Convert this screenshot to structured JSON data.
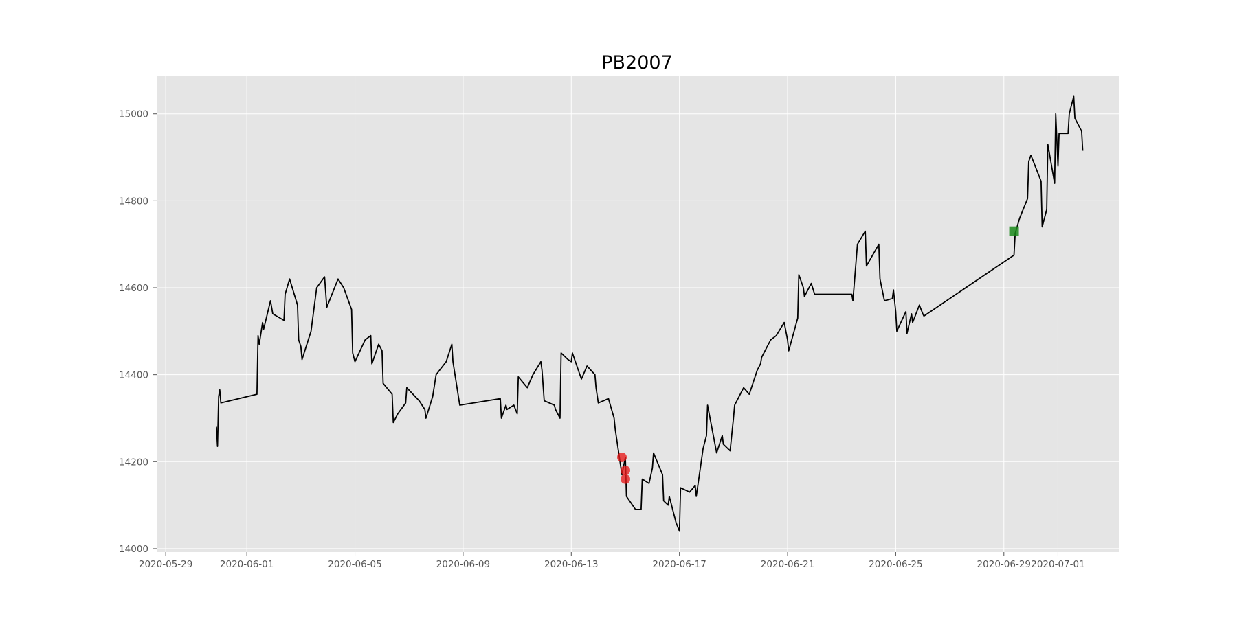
{
  "chart_data": {
    "type": "line",
    "title": "PB2007",
    "xlabel": "",
    "ylabel": "",
    "x_ticks": [
      "2020-05-29",
      "2020-06-01",
      "2020-06-05",
      "2020-06-09",
      "2020-06-13",
      "2020-06-17",
      "2020-06-21",
      "2020-06-25",
      "2020-06-29",
      "2020-07-01"
    ],
    "y_ticks": [
      14000,
      14200,
      14400,
      14600,
      14800,
      15000
    ],
    "xlim": [
      "2020-05-28 16:00",
      "2020-07-03 06:00"
    ],
    "ylim": [
      13992,
      15088
    ],
    "grid": true,
    "colors": {
      "background": "#e5e5e5",
      "grid": "#ffffff",
      "line": "#000000",
      "buy_marker": "#e8191a",
      "sell_marker": "#1a8a1a"
    },
    "series": [
      {
        "type": "line",
        "points": [
          [
            "2020-05-30 21:00",
            14280
          ],
          [
            "2020-05-30 22:00",
            14235
          ],
          [
            "2020-05-30 23:00",
            14350
          ],
          [
            "2020-05-31 00:00",
            14365
          ],
          [
            "2020-05-31 01:00",
            14335
          ],
          [
            "2020-06-01 09:00",
            14355
          ],
          [
            "2020-06-01 10:00",
            14490
          ],
          [
            "2020-06-01 11:00",
            14470
          ],
          [
            "2020-06-01 14:00",
            14520
          ],
          [
            "2020-06-01 15:00",
            14505
          ],
          [
            "2020-06-01 21:00",
            14570
          ],
          [
            "2020-06-01 23:00",
            14540
          ],
          [
            "2020-06-02 09:00",
            14525
          ],
          [
            "2020-06-02 10:00",
            14585
          ],
          [
            "2020-06-02 14:00",
            14620
          ],
          [
            "2020-06-02 21:00",
            14560
          ],
          [
            "2020-06-02 22:00",
            14480
          ],
          [
            "2020-06-03 00:00",
            14465
          ],
          [
            "2020-06-03 01:00",
            14435
          ],
          [
            "2020-06-03 09:00",
            14500
          ],
          [
            "2020-06-03 14:00",
            14600
          ],
          [
            "2020-06-03 21:00",
            14625
          ],
          [
            "2020-06-03 23:00",
            14555
          ],
          [
            "2020-06-04 09:00",
            14620
          ],
          [
            "2020-06-04 14:00",
            14600
          ],
          [
            "2020-06-04 21:00",
            14550
          ],
          [
            "2020-06-04 22:00",
            14450
          ],
          [
            "2020-06-05 00:00",
            14430
          ],
          [
            "2020-06-05 09:00",
            14480
          ],
          [
            "2020-06-05 14:00",
            14490
          ],
          [
            "2020-06-05 15:00",
            14425
          ],
          [
            "2020-06-05 21:00",
            14470
          ],
          [
            "2020-06-06 00:00",
            14455
          ],
          [
            "2020-06-06 01:00",
            14380
          ],
          [
            "2020-06-06 09:00",
            14355
          ],
          [
            "2020-06-06 10:00",
            14290
          ],
          [
            "2020-06-06 14:00",
            14310
          ],
          [
            "2020-06-06 21:00",
            14335
          ],
          [
            "2020-06-06 22:00",
            14370
          ],
          [
            "2020-06-07 09:00",
            14340
          ],
          [
            "2020-06-07 14:00",
            14320
          ],
          [
            "2020-06-07 15:00",
            14300
          ],
          [
            "2020-06-07 21:00",
            14350
          ],
          [
            "2020-06-08 00:00",
            14400
          ],
          [
            "2020-06-08 09:00",
            14430
          ],
          [
            "2020-06-08 14:00",
            14470
          ],
          [
            "2020-06-08 15:00",
            14430
          ],
          [
            "2020-06-08 21:00",
            14330
          ],
          [
            "2020-06-10 09:00",
            14345
          ],
          [
            "2020-06-10 10:00",
            14300
          ],
          [
            "2020-06-10 14:00",
            14330
          ],
          [
            "2020-06-10 15:00",
            14320
          ],
          [
            "2020-06-10 21:00",
            14330
          ],
          [
            "2020-06-11 00:00",
            14310
          ],
          [
            "2020-06-11 01:00",
            14395
          ],
          [
            "2020-06-11 09:00",
            14370
          ],
          [
            "2020-06-11 14:00",
            14400
          ],
          [
            "2020-06-11 21:00",
            14430
          ],
          [
            "2020-06-11 22:00",
            14410
          ],
          [
            "2020-06-12 00:00",
            14340
          ],
          [
            "2020-06-12 09:00",
            14330
          ],
          [
            "2020-06-12 10:00",
            14320
          ],
          [
            "2020-06-12 14:00",
            14300
          ],
          [
            "2020-06-12 15:00",
            14450
          ],
          [
            "2020-06-12 21:00",
            14435
          ],
          [
            "2020-06-13 00:00",
            14430
          ],
          [
            "2020-06-13 01:00",
            14450
          ],
          [
            "2020-06-13 09:00",
            14390
          ],
          [
            "2020-06-13 14:00",
            14420
          ],
          [
            "2020-06-13 21:00",
            14400
          ],
          [
            "2020-06-13 22:00",
            14370
          ],
          [
            "2020-06-14 00:00",
            14335
          ],
          [
            "2020-06-14 09:00",
            14345
          ],
          [
            "2020-06-14 14:00",
            14300
          ],
          [
            "2020-06-14 15:00",
            14275
          ],
          [
            "2020-06-14 21:00",
            14170
          ],
          [
            "2020-06-15 00:00",
            14210
          ],
          [
            "2020-06-15 01:00",
            14120
          ],
          [
            "2020-06-15 09:00",
            14090
          ],
          [
            "2020-06-15 14:00",
            14090
          ],
          [
            "2020-06-15 15:00",
            14160
          ],
          [
            "2020-06-15 21:00",
            14150
          ],
          [
            "2020-06-16 00:00",
            14185
          ],
          [
            "2020-06-16 01:00",
            14220
          ],
          [
            "2020-06-16 09:00",
            14170
          ],
          [
            "2020-06-16 10:00",
            14110
          ],
          [
            "2020-06-16 14:00",
            14100
          ],
          [
            "2020-06-16 15:00",
            14120
          ],
          [
            "2020-06-16 21:00",
            14060
          ],
          [
            "2020-06-17 00:00",
            14040
          ],
          [
            "2020-06-17 01:00",
            14140
          ],
          [
            "2020-06-17 09:00",
            14130
          ],
          [
            "2020-06-17 14:00",
            14145
          ],
          [
            "2020-06-17 15:00",
            14120
          ],
          [
            "2020-06-17 21:00",
            14230
          ],
          [
            "2020-06-18 00:00",
            14260
          ],
          [
            "2020-06-18 01:00",
            14330
          ],
          [
            "2020-06-18 09:00",
            14220
          ],
          [
            "2020-06-18 14:00",
            14260
          ],
          [
            "2020-06-18 15:00",
            14240
          ],
          [
            "2020-06-18 21:00",
            14225
          ],
          [
            "2020-06-19 00:00",
            14300
          ],
          [
            "2020-06-19 01:00",
            14330
          ],
          [
            "2020-06-19 09:00",
            14370
          ],
          [
            "2020-06-19 14:00",
            14355
          ],
          [
            "2020-06-19 21:00",
            14410
          ],
          [
            "2020-06-20 00:00",
            14425
          ],
          [
            "2020-06-20 01:00",
            14440
          ],
          [
            "2020-06-20 09:00",
            14480
          ],
          [
            "2020-06-20 14:00",
            14490
          ],
          [
            "2020-06-20 21:00",
            14520
          ],
          [
            "2020-06-21 00:00",
            14480
          ],
          [
            "2020-06-21 01:00",
            14455
          ],
          [
            "2020-06-21 09:00",
            14530
          ],
          [
            "2020-06-21 10:00",
            14630
          ],
          [
            "2020-06-21 14:00",
            14600
          ],
          [
            "2020-06-21 15:00",
            14580
          ],
          [
            "2020-06-21 21:00",
            14610
          ],
          [
            "2020-06-22 00:00",
            14585
          ],
          [
            "2020-06-23 09:00",
            14585
          ],
          [
            "2020-06-23 10:00",
            14570
          ],
          [
            "2020-06-23 14:00",
            14700
          ],
          [
            "2020-06-23 21:00",
            14730
          ],
          [
            "2020-06-23 22:00",
            14650
          ],
          [
            "2020-06-24 09:00",
            14700
          ],
          [
            "2020-06-24 10:00",
            14620
          ],
          [
            "2020-06-24 14:00",
            14570
          ],
          [
            "2020-06-24 21:00",
            14575
          ],
          [
            "2020-06-24 22:00",
            14595
          ],
          [
            "2020-06-25 00:00",
            14545
          ],
          [
            "2020-06-25 01:00",
            14500
          ],
          [
            "2020-06-25 09:00",
            14545
          ],
          [
            "2020-06-25 10:00",
            14495
          ],
          [
            "2020-06-25 14:00",
            14540
          ],
          [
            "2020-06-25 15:00",
            14520
          ],
          [
            "2020-06-25 21:00",
            14560
          ],
          [
            "2020-06-26 00:00",
            14540
          ],
          [
            "2020-06-26 01:00",
            14535
          ],
          [
            "2020-06-29 09:00",
            14675
          ],
          [
            "2020-06-29 10:00",
            14725
          ],
          [
            "2020-06-29 14:00",
            14760
          ],
          [
            "2020-06-29 21:00",
            14805
          ],
          [
            "2020-06-29 22:00",
            14890
          ],
          [
            "2020-06-30 00:00",
            14905
          ],
          [
            "2020-06-30 09:00",
            14845
          ],
          [
            "2020-06-30 10:00",
            14740
          ],
          [
            "2020-06-30 14:00",
            14780
          ],
          [
            "2020-06-30 15:00",
            14930
          ],
          [
            "2020-06-30 21:00",
            14840
          ],
          [
            "2020-06-30 22:00",
            15000
          ],
          [
            "2020-07-01 00:00",
            14880
          ],
          [
            "2020-07-01 01:00",
            14955
          ],
          [
            "2020-07-01 09:00",
            14955
          ],
          [
            "2020-07-01 10:00",
            15000
          ],
          [
            "2020-07-01 14:00",
            15040
          ],
          [
            "2020-07-01 15:00",
            14990
          ],
          [
            "2020-07-01 21:00",
            14960
          ],
          [
            "2020-07-01 22:00",
            14915
          ]
        ]
      }
    ],
    "markers": [
      {
        "type": "buy",
        "shape": "circle",
        "x": "2020-06-14 21:00",
        "y": 14210
      },
      {
        "type": "buy",
        "shape": "circle",
        "x": "2020-06-15 00:00",
        "y": 14180
      },
      {
        "type": "buy",
        "shape": "circle",
        "x": "2020-06-15 00:00",
        "y": 14160
      },
      {
        "type": "sell",
        "shape": "square",
        "x": "2020-06-29 09:00",
        "y": 14730
      }
    ]
  }
}
